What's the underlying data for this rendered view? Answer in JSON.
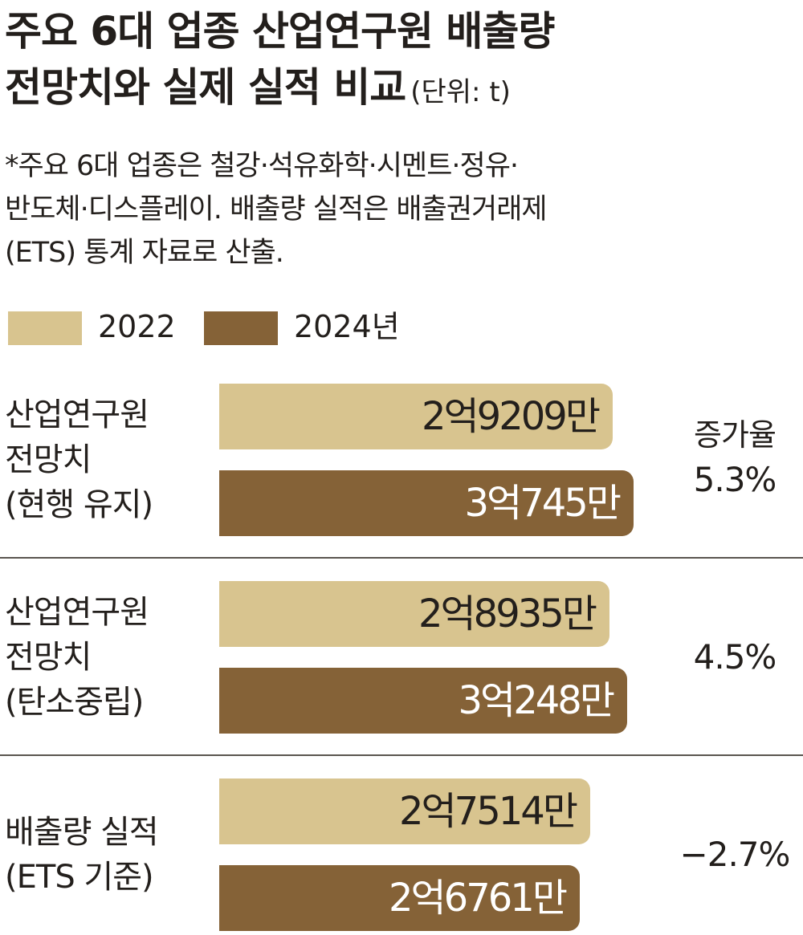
{
  "title": {
    "line1": "주요 6대 업종 산업연구원 배출량",
    "line2": "전망치와 실제 실적 비교",
    "unit": "(단위: t)"
  },
  "note": {
    "line1": "*주요 6대 업종은 철강·석유화학·시멘트·정유·",
    "line2": "반도체·디스플레이. 배출량 실적은 배출권거래제",
    "line3": "(ETS) 통계 자료로 산출."
  },
  "colors": {
    "s2022": "#d8c48f",
    "s2024": "#856237"
  },
  "chart_data": {
    "type": "bar",
    "orientation": "horizontal",
    "title": "주요 6대 업종 산업연구원 배출량 전망치와 실제 실적 비교",
    "unit": "t",
    "legend": [
      "2022",
      "2024년"
    ],
    "legend_position": "top-left",
    "rate_label": "증가율",
    "xlim": [
      0,
      320000000
    ],
    "categories": [
      {
        "lines": [
          "산업연구원",
          "전망치",
          "(현행 유지)"
        ]
      },
      {
        "lines": [
          "산업연구원",
          "전망치",
          "(탄소중립)"
        ]
      },
      {
        "lines": [
          "배출량 실적",
          "(ETS 기준)"
        ]
      }
    ],
    "series": [
      {
        "name": "2022",
        "values": [
          292090000,
          289350000,
          275140000
        ],
        "labels": [
          "2억9209만",
          "2억8935만",
          "2억7514만"
        ]
      },
      {
        "name": "2024년",
        "values": [
          307450000,
          302480000,
          267610000
        ],
        "labels": [
          "3억745만",
          "3억248만",
          "2억6761만"
        ]
      }
    ],
    "growth_rates": [
      "5.3%",
      "4.5%",
      "−2.7%"
    ]
  }
}
